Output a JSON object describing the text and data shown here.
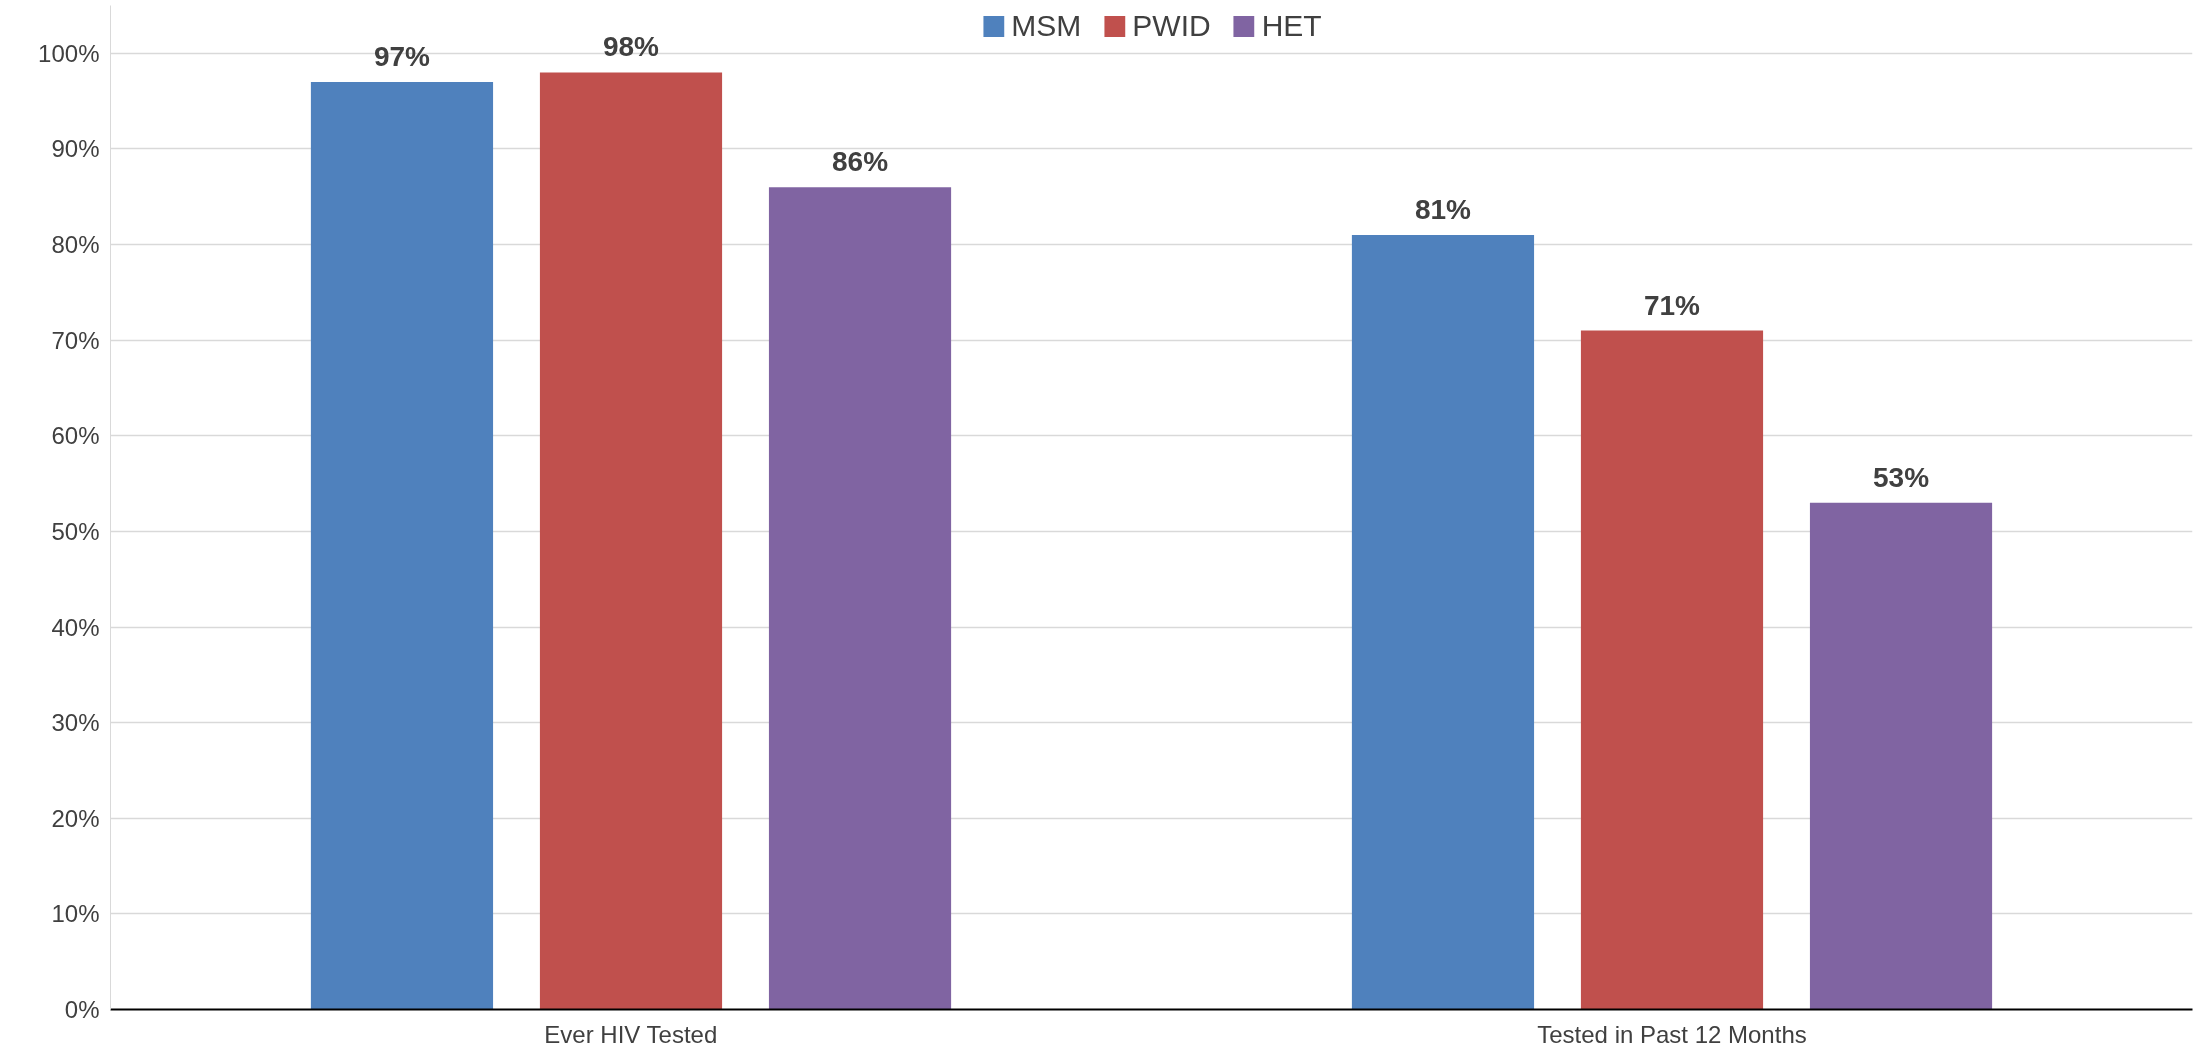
{
  "chart_data": {
    "type": "bar",
    "categories": [
      "Ever HIV Tested",
      "Tested in Past 12 Months"
    ],
    "series": [
      {
        "name": "MSM",
        "color": "#4f81bd",
        "values": [
          97,
          81
        ],
        "value_labels": [
          "97%",
          "81%"
        ]
      },
      {
        "name": "PWID",
        "color": "#c0504d",
        "values": [
          98,
          71
        ],
        "value_labels": [
          "98%",
          "71%"
        ]
      },
      {
        "name": "HET",
        "color": "#8064a2",
        "values": [
          86,
          53
        ],
        "value_labels": [
          "86%",
          "53%"
        ]
      }
    ],
    "ylim": [
      0,
      105
    ],
    "yticks": [
      {
        "value": 0,
        "label": "0%"
      },
      {
        "value": 10,
        "label": "10%"
      },
      {
        "value": 20,
        "label": "20%"
      },
      {
        "value": 30,
        "label": "30%"
      },
      {
        "value": 40,
        "label": "40%"
      },
      {
        "value": 50,
        "label": "50%"
      },
      {
        "value": 60,
        "label": "60%"
      },
      {
        "value": 70,
        "label": "70%"
      },
      {
        "value": 80,
        "label": "80%"
      },
      {
        "value": 90,
        "label": "90%"
      },
      {
        "value": 100,
        "label": "100%"
      }
    ],
    "grid": "y",
    "legend": "top"
  }
}
